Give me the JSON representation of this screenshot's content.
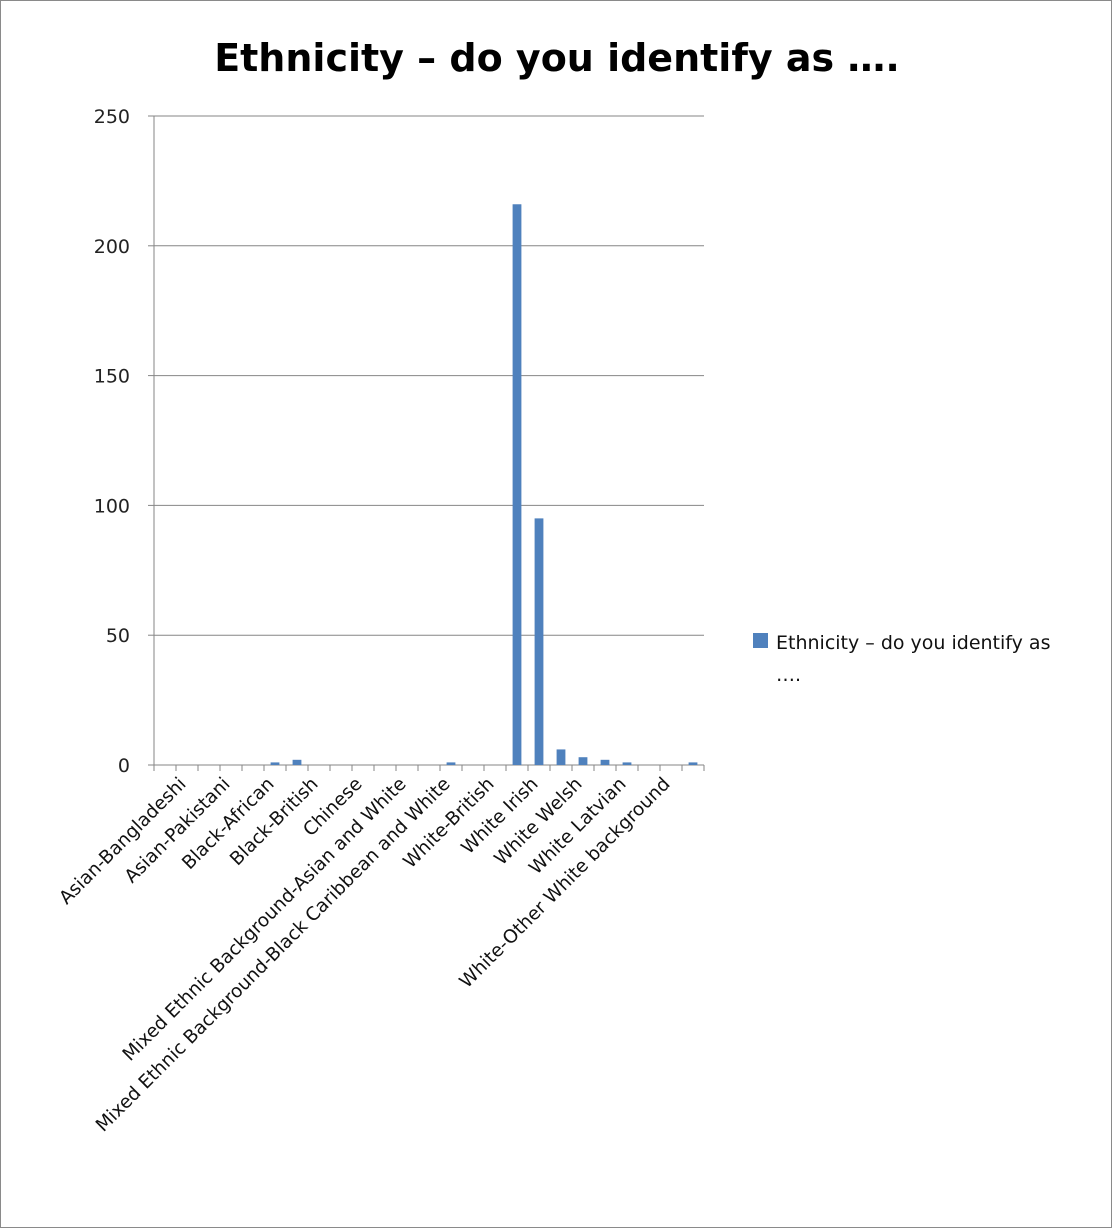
{
  "chart_data": {
    "type": "bar",
    "title": "Ethnicity – do you identify as ….",
    "xlabel": "",
    "ylabel": "",
    "ylim": [
      0,
      250
    ],
    "yticks": [
      "0",
      "50",
      "100",
      "150",
      "200",
      "250"
    ],
    "grid": true,
    "legend_position": "right",
    "bar_color": "#4F81BD",
    "categories": [
      "Asian-Bangladeshi",
      "Asian-Pakistani",
      "Black-African",
      "Black-British",
      "Chinese",
      "Mixed Ethnic Background-Asian and White",
      "Mixed Ethnic Background-Black Caribbean and White",
      "White-British",
      "White Irish",
      "White Welsh",
      "White Latvian",
      "White-Other White background"
    ],
    "slot_values": [
      0,
      0,
      0,
      0,
      0,
      1,
      2,
      0,
      0,
      0,
      0,
      0,
      0,
      1,
      0,
      0,
      216,
      95,
      6,
      3,
      2,
      1,
      0,
      0,
      1
    ],
    "series": [
      {
        "name": "Ethnicity – do you identify as ….",
        "legend_lines": [
          "Ethnicity – do you identify as",
          "…."
        ]
      }
    ]
  }
}
